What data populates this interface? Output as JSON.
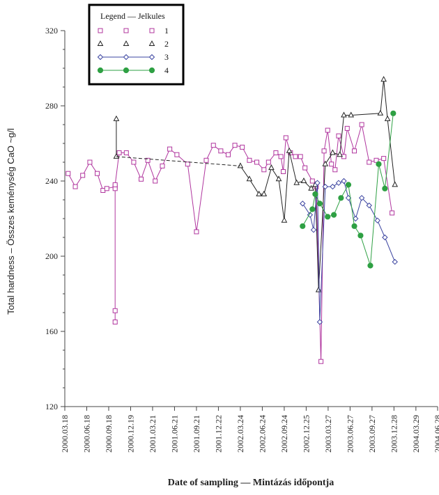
{
  "chart_data": {
    "type": "line",
    "xlabel": "Date of sampling — Mintázás időpontja",
    "ylabel": "Total hardness – Összes keménység CaO ~g/l",
    "ylim": [
      120,
      320
    ],
    "yticks": [
      120,
      160,
      200,
      240,
      280,
      320
    ],
    "xlim": [
      "2000-03-18",
      "2004-06-28"
    ],
    "xticks": [
      "2000.03.18",
      "2000.06.18",
      "2000.09.18",
      "2000.12.19",
      "2001.03.21",
      "2001.06.21",
      "2001.09.21",
      "2001.12.22",
      "2002.03.24",
      "2002.06.24",
      "2002.09.24",
      "2002.12.25",
      "2003.03.27",
      "2003.06.27",
      "2003.09.27",
      "2003.12.28",
      "2004.03.29",
      "2004.06.28"
    ],
    "legend": {
      "title": "Legend — Jelkules",
      "position": "top-left"
    },
    "series": [
      {
        "name": "1",
        "color": "#b0359e",
        "marker": "square-open",
        "points": [
          [
            "2000-04-01",
            244
          ],
          [
            "2000-05-01",
            237
          ],
          [
            "2000-06-01",
            243
          ],
          [
            "2000-07-01",
            250
          ],
          [
            "2000-08-01",
            244
          ],
          [
            "2000-08-25",
            235
          ],
          [
            "2000-09-10",
            236
          ],
          [
            "2000-10-15",
            237
          ],
          [
            "2000-10-15",
            236
          ],
          [
            "2000-10-15",
            171
          ],
          [
            "2000-10-15",
            165
          ],
          [
            "2000-10-15",
            238
          ],
          [
            "2000-11-01",
            255
          ],
          [
            "2000-12-01",
            255
          ],
          [
            "2001-01-01",
            250
          ],
          [
            "2001-02-01",
            241
          ],
          [
            "2001-03-01",
            251
          ],
          [
            "2001-04-01",
            240
          ],
          [
            "2001-05-01",
            248
          ],
          [
            "2001-06-01",
            257
          ],
          [
            "2001-07-01",
            254
          ],
          [
            "2001-08-15",
            249
          ],
          [
            "2001-09-21",
            213
          ],
          [
            "2001-11-01",
            251
          ],
          [
            "2001-12-01",
            259
          ],
          [
            "2002-01-01",
            256
          ],
          [
            "2002-02-01",
            254
          ],
          [
            "2002-03-01",
            259
          ],
          [
            "2002-04-01",
            258
          ],
          [
            "2002-05-01",
            251
          ],
          [
            "2002-06-01",
            250
          ],
          [
            "2002-07-01",
            246
          ],
          [
            "2002-07-20",
            250
          ],
          [
            "2002-08-20",
            255
          ],
          [
            "2002-09-10",
            253
          ],
          [
            "2002-09-20",
            245
          ],
          [
            "2002-10-01",
            263
          ],
          [
            "2002-10-20",
            255
          ],
          [
            "2002-11-10",
            253
          ],
          [
            "2002-12-01",
            253
          ],
          [
            "2002-12-20",
            247
          ],
          [
            "2003-01-20",
            240
          ],
          [
            "2003-02-05",
            237
          ],
          [
            "2003-02-25",
            144
          ],
          [
            "2003-03-10",
            256
          ],
          [
            "2003-03-25",
            267
          ],
          [
            "2003-04-10",
            249
          ],
          [
            "2003-04-25",
            246
          ],
          [
            "2003-05-10",
            264
          ],
          [
            "2003-06-01",
            253
          ],
          [
            "2003-06-15",
            268
          ],
          [
            "2003-07-15",
            256
          ],
          [
            "2003-08-15",
            270
          ],
          [
            "2003-09-15",
            250
          ],
          [
            "2003-10-15",
            251
          ],
          [
            "2003-11-15",
            252
          ],
          [
            "2003-12-20",
            223
          ]
        ]
      },
      {
        "name": "2",
        "color": "#222222",
        "marker": "triangle-open",
        "points": [
          [
            "2000-10-20",
            273
          ],
          [
            "2000-10-20",
            253
          ],
          [
            "2002-03-24",
            248
          ],
          [
            "2002-05-01",
            241
          ],
          [
            "2002-06-10",
            233
          ],
          [
            "2002-07-01",
            233
          ],
          [
            "2002-08-01",
            247
          ],
          [
            "2002-09-01",
            241
          ],
          [
            "2002-09-24",
            219
          ],
          [
            "2002-10-15",
            256
          ],
          [
            "2002-11-15",
            239
          ],
          [
            "2002-12-15",
            240
          ],
          [
            "2003-01-15",
            236
          ],
          [
            "2003-02-01",
            238
          ],
          [
            "2003-02-15",
            182
          ],
          [
            "2003-03-15",
            249
          ],
          [
            "2003-04-15",
            255
          ],
          [
            "2003-05-15",
            254
          ],
          [
            "2003-06-01",
            275
          ],
          [
            "2003-07-01",
            275
          ],
          [
            "2003-11-01",
            276
          ],
          [
            "2003-11-15",
            294
          ],
          [
            "2003-12-01",
            273
          ],
          [
            "2004-01-01",
            238
          ]
        ]
      },
      {
        "name": "3",
        "color": "#3b44a0",
        "marker": "diamond-open",
        "points": [
          [
            "2002-12-10",
            228
          ],
          [
            "2003-01-10",
            222
          ],
          [
            "2003-01-25",
            214
          ],
          [
            "2003-02-10",
            239
          ],
          [
            "2003-02-20",
            165
          ],
          [
            "2003-03-15",
            237
          ],
          [
            "2003-04-15",
            237
          ],
          [
            "2003-05-10",
            239
          ],
          [
            "2003-06-01",
            240
          ],
          [
            "2003-06-20",
            231
          ],
          [
            "2003-07-20",
            220
          ],
          [
            "2003-08-15",
            231
          ],
          [
            "2003-09-15",
            227
          ],
          [
            "2003-10-20",
            219
          ],
          [
            "2003-11-20",
            210
          ],
          [
            "2004-01-01",
            197
          ]
        ]
      },
      {
        "name": "4",
        "color": "#2ea043",
        "marker": "circle-filled",
        "points": [
          [
            "2002-12-10",
            216
          ],
          [
            "2003-01-20",
            225
          ],
          [
            "2003-02-01",
            233
          ],
          [
            "2003-02-20",
            228
          ],
          [
            "2003-03-25",
            221
          ],
          [
            "2003-04-20",
            222
          ],
          [
            "2003-05-20",
            231
          ],
          [
            "2003-06-20",
            238
          ],
          [
            "2003-07-15",
            216
          ],
          [
            "2003-08-10",
            211
          ],
          [
            "2003-09-20",
            195
          ],
          [
            "2003-10-25",
            249
          ],
          [
            "2003-11-20",
            236
          ],
          [
            "2003-12-25",
            276
          ]
        ]
      }
    ]
  }
}
